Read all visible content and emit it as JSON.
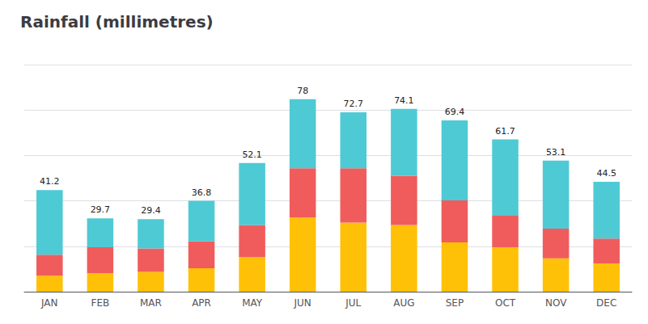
{
  "chart_data": {
    "type": "bar",
    "title": "Rainfall (millimetres)",
    "categories": [
      "JAN",
      "FEB",
      "MAR",
      "APR",
      "MAY",
      "JUN",
      "JUL",
      "AUG",
      "SEP",
      "OCT",
      "NOV",
      "DEC"
    ],
    "series": [
      {
        "color": "#FFC107",
        "values": [
          6.5,
          7.5,
          8.0,
          9.5,
          14.0,
          30.0,
          28.0,
          27.0,
          20.0,
          18.0,
          13.5,
          11.5
        ]
      },
      {
        "color": "#F05C5C",
        "values": [
          8.5,
          10.5,
          9.5,
          11.0,
          13.0,
          20.0,
          22.0,
          20.0,
          17.0,
          13.0,
          12.0,
          10.0
        ]
      },
      {
        "color": "#4ECAD5",
        "values": [
          26.2,
          11.7,
          11.9,
          16.3,
          25.1,
          28.0,
          22.7,
          27.1,
          32.4,
          30.7,
          27.6,
          23.0
        ]
      }
    ],
    "totals": [
      41.2,
      29.7,
      29.4,
      36.8,
      52.1,
      78,
      72.7,
      74.1,
      69.4,
      61.7,
      53.1,
      44.5
    ],
    "stacked": true,
    "ylim": [
      0,
      92
    ],
    "yticks": [
      0,
      18.4,
      36.8,
      55.2,
      73.6,
      92
    ],
    "grid": true,
    "tick_labels": "x"
  }
}
